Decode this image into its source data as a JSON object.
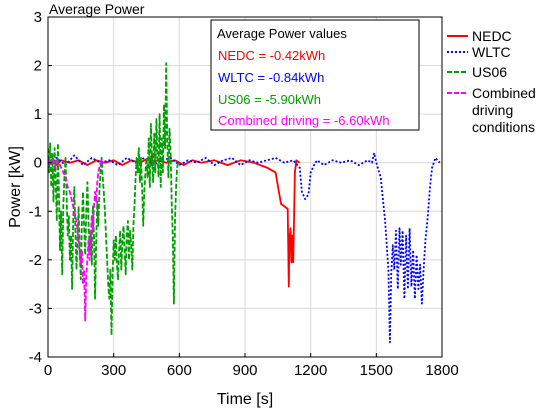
{
  "chart_data": {
    "type": "line",
    "title": "Average Power",
    "xlabel": "Time [s]",
    "ylabel": "Power [kW]",
    "xlim": [
      0,
      1800
    ],
    "ylim": [
      -4,
      3
    ],
    "x_ticks": [
      0,
      300,
      600,
      900,
      1200,
      1500,
      1800
    ],
    "y_ticks": [
      3,
      2,
      1,
      0,
      -1,
      -2,
      -3,
      -4
    ],
    "grid": true,
    "legend_position": "outside-right",
    "annotation": {
      "title": "Average Power values",
      "lines": [
        {
          "text": "NEDC = -0.42kWh",
          "color": "#ff0000"
        },
        {
          "text": "WLTC = -0.84kWh",
          "color": "#0000ff"
        },
        {
          "text": "US06 = -5.90kWh",
          "color": "#00a000"
        },
        {
          "text": "Combined driving = -6.60kWh",
          "color": "#ff00ff"
        }
      ]
    },
    "series": [
      {
        "name": "NEDC",
        "color": "#ff0000",
        "style": "solid",
        "x": [
          0,
          20,
          40,
          60,
          100,
          140,
          180,
          220,
          260,
          300,
          340,
          380,
          420,
          460,
          470,
          475,
          480,
          500,
          540,
          580,
          620,
          660,
          700,
          760,
          820,
          880,
          940,
          1000,
          1040,
          1055,
          1065,
          1080,
          1095,
          1100,
          1103,
          1108,
          1112,
          1116,
          1120,
          1124,
          1128,
          1135,
          1150
        ],
        "y": [
          0,
          0.05,
          -0.05,
          0.05,
          0,
          0.05,
          -0.05,
          0.05,
          0,
          0.05,
          -0.05,
          0.05,
          0,
          0.1,
          -0.05,
          0.15,
          0,
          0.05,
          0,
          0.05,
          -0.05,
          0.05,
          0,
          0.05,
          -0.05,
          0.05,
          0,
          -0.1,
          -0.2,
          -0.6,
          -0.85,
          -0.9,
          -0.95,
          -2.55,
          -1.6,
          -1.35,
          -2.05,
          -1.5,
          -2.05,
          -1.2,
          -0.2,
          0.05,
          0
        ]
      },
      {
        "name": "WLTC",
        "color": "#0000ff",
        "style": "dotted",
        "x": [
          0,
          40,
          80,
          120,
          160,
          200,
          240,
          280,
          320,
          360,
          400,
          440,
          480,
          520,
          560,
          600,
          640,
          680,
          720,
          760,
          800,
          840,
          880,
          920,
          960,
          1000,
          1040,
          1080,
          1120,
          1150,
          1160,
          1175,
          1190,
          1200,
          1215,
          1230,
          1260,
          1300,
          1340,
          1380,
          1420,
          1460,
          1480,
          1490,
          1500,
          1520,
          1540,
          1555,
          1562,
          1568,
          1575,
          1582,
          1590,
          1598,
          1606,
          1612,
          1620,
          1628,
          1636,
          1644,
          1652,
          1660,
          1668,
          1676,
          1684,
          1692,
          1700,
          1708,
          1716,
          1724,
          1735,
          1745,
          1755,
          1770,
          1790
        ],
        "y": [
          0.05,
          0.1,
          -0.05,
          0.15,
          -0.05,
          0.1,
          0,
          0.05,
          -0.05,
          0.1,
          0,
          0.1,
          -0.05,
          0.05,
          0.1,
          -0.05,
          0.05,
          0,
          0.1,
          -0.05,
          0.05,
          0.1,
          -0.05,
          0.05,
          0,
          0.05,
          0.1,
          0,
          0.05,
          -0.1,
          -0.6,
          -0.75,
          -0.65,
          -0.2,
          -0.05,
          0.05,
          -0.05,
          0.05,
          0,
          0.05,
          -0.05,
          0.05,
          0,
          0.2,
          0,
          -0.3,
          -1.2,
          -2.2,
          -3.7,
          -2.3,
          -1.7,
          -2.2,
          -1.4,
          -2.6,
          -1.35,
          -2.1,
          -1.4,
          -2.8,
          -1.5,
          -2.6,
          -1.35,
          -2.55,
          -1.8,
          -2.8,
          -1.9,
          -2.6,
          -2.1,
          -2.9,
          -2.2,
          -1.6,
          -1.1,
          -0.5,
          -0.1,
          0.1,
          0
        ]
      },
      {
        "name": "US06",
        "color": "#00a000",
        "style": "dashed",
        "x": [
          0,
          5,
          10,
          15,
          20,
          25,
          30,
          35,
          40,
          45,
          50,
          55,
          60,
          65,
          70,
          75,
          80,
          85,
          90,
          95,
          100,
          105,
          110,
          115,
          120,
          125,
          130,
          135,
          140,
          145,
          150,
          155,
          160,
          165,
          170,
          175,
          180,
          185,
          190,
          195,
          200,
          205,
          210,
          215,
          220,
          225,
          230,
          235,
          240,
          245,
          250,
          255,
          260,
          265,
          270,
          275,
          280,
          285,
          290,
          295,
          300,
          305,
          310,
          315,
          320,
          325,
          330,
          335,
          340,
          345,
          350,
          355,
          360,
          365,
          370,
          375,
          380,
          385,
          390,
          395,
          400,
          405,
          410,
          415,
          420,
          425,
          430,
          435,
          440,
          445,
          450,
          455,
          460,
          465,
          470,
          475,
          480,
          485,
          490,
          495,
          500,
          505,
          510,
          515,
          520,
          525,
          530,
          535,
          540,
          545,
          550,
          555,
          560,
          565,
          570,
          575,
          580,
          585,
          590,
          595,
          600
        ],
        "y": [
          0.3,
          -0.2,
          0.4,
          -0.5,
          0.2,
          -0.8,
          0.3,
          -0.4,
          -1.2,
          0.4,
          -0.6,
          -1.8,
          -1.0,
          -2.3,
          -0.9,
          -0.3,
          0.1,
          -0.7,
          -1.5,
          -1.1,
          -2.0,
          -1.5,
          -2.6,
          -1.2,
          -0.5,
          -1.4,
          -2.2,
          -1.6,
          -0.9,
          -1.8,
          -2.4,
          -1.2,
          -0.6,
          -1.3,
          -1.9,
          -1.0,
          -0.4,
          -1.2,
          -1.8,
          -1.4,
          -2.1,
          -0.9,
          -1.5,
          -2.8,
          -1.6,
          -0.8,
          -1.3,
          -0.6,
          -0.2,
          0.1,
          -0.3,
          -0.6,
          -1.0,
          -1.5,
          -2.0,
          -2.5,
          -2.8,
          -2.2,
          -3.55,
          -2.3,
          -1.6,
          -2.0,
          -1.5,
          -2.1,
          -2.4,
          -1.8,
          -1.4,
          -2.2,
          -1.6,
          -1.3,
          -1.8,
          -2.3,
          -1.5,
          -1.2,
          -2.0,
          -1.4,
          -1.7,
          -2.2,
          -1.3,
          -0.9,
          -0.3,
          0.1,
          -0.2,
          0.3,
          -0.4,
          0.1,
          -0.5,
          -1.3,
          -0.6,
          -0.2,
          0.1,
          -0.3,
          0.5,
          -0.5,
          0.8,
          0.1,
          -0.4,
          0.6,
          -0.2,
          0.9,
          0.2,
          -0.3,
          1.0,
          -0.5,
          0.5,
          -0.2,
          1.2,
          0.3,
          2.05,
          0.4,
          -0.3,
          0.7,
          0.2,
          -0.8,
          -1.5,
          -2.9,
          -1.2,
          -0.5,
          -0.1,
          0,
          0
        ]
      },
      {
        "name": "Combined driving conditions",
        "color": "#ff00ff",
        "style": "dashed",
        "x": [
          0,
          10,
          20,
          30,
          40,
          50,
          60,
          70,
          80,
          90,
          100,
          110,
          120,
          130,
          140,
          145,
          150,
          155,
          160,
          165,
          170,
          175,
          180,
          185,
          190,
          195,
          200,
          205,
          210,
          215,
          220,
          225,
          230,
          235,
          240,
          245,
          250,
          260
        ],
        "y": [
          0.05,
          -0.05,
          0.1,
          -0.1,
          0.05,
          0,
          -0.1,
          -0.2,
          -0.3,
          -0.5,
          -0.6,
          -0.8,
          -1.0,
          -1.2,
          -1.6,
          -1.9,
          -2.1,
          -1.8,
          -2.5,
          -2.2,
          -3.25,
          -2.3,
          -2.0,
          -1.6,
          -2.0,
          -1.5,
          -1.1,
          -1.4,
          -0.9,
          -0.6,
          -0.8,
          -0.4,
          -0.2,
          -0.1,
          0,
          0.05,
          0,
          0
        ]
      }
    ]
  }
}
